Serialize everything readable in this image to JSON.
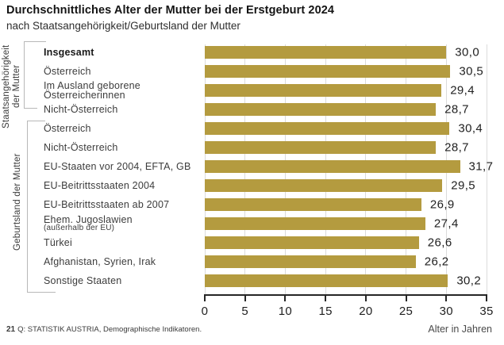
{
  "header": {
    "title": "Durchschnittliches Alter der Mutter bei der Erstgeburt 2024",
    "subtitle": "nach Staatsangehörigkeit/Geburtsland der Mutter"
  },
  "colors": {
    "bar": "#b49b3f",
    "grid": "#dbdbdb",
    "axis": "#262626",
    "bracket": "#b8b8b8",
    "title": "#141414",
    "text": "#3c3c3c",
    "value": "#1f1f1f"
  },
  "chart_data": {
    "type": "bar",
    "orientation": "horizontal",
    "title": "Durchschnittliches Alter der Mutter bei der Erstgeburt 2024",
    "subtitle": "nach Staatsangehörigkeit/Geburtsland der Mutter",
    "xlabel": "Alter in Jahren",
    "xlim": [
      0,
      35
    ],
    "xticks": [
      0,
      5,
      10,
      15,
      20,
      25,
      30,
      35
    ],
    "grid": true,
    "legend": false,
    "rows": [
      {
        "lines": [
          "Insgesamt"
        ],
        "bold": true,
        "value": 30.0,
        "value_label": "30,0"
      },
      {
        "lines": [
          "Österreich"
        ],
        "value": 30.5,
        "value_label": "30,5"
      },
      {
        "lines": [
          "Im Ausland geborene",
          "Österreicherinnen"
        ],
        "value": 29.4,
        "value_label": "29,4"
      },
      {
        "lines": [
          "Nicht-Österreich"
        ],
        "value": 28.7,
        "value_label": "28,7"
      },
      {
        "lines": [
          "Österreich"
        ],
        "value": 30.4,
        "value_label": "30,4"
      },
      {
        "lines": [
          "Nicht-Österreich"
        ],
        "value": 28.7,
        "value_label": "28,7"
      },
      {
        "lines": [
          "EU-Staaten vor 2004, EFTA, GB"
        ],
        "value": 31.7,
        "value_label": "31,7"
      },
      {
        "lines": [
          "EU-Beitrittsstaaten 2004"
        ],
        "value": 29.5,
        "value_label": "29,5"
      },
      {
        "lines": [
          "EU-Beitrittsstaaten ab 2007"
        ],
        "value": 26.9,
        "value_label": "26,9"
      },
      {
        "lines": [
          "Ehem. Jugoslawien",
          "(außerhalb der EU)"
        ],
        "small_second_line": true,
        "value": 27.4,
        "value_label": "27,4"
      },
      {
        "lines": [
          "Türkei"
        ],
        "value": 26.6,
        "value_label": "26,6"
      },
      {
        "lines": [
          "Afghanistan, Syrien, Irak"
        ],
        "value": 26.2,
        "value_label": "26,2"
      },
      {
        "lines": [
          "Sonstige Staaten"
        ],
        "value": 30.2,
        "value_label": "30,2"
      }
    ],
    "groups": [
      {
        "label": "Staatsangehörigkeit der Mutter",
        "label_lines": [
          "Staatsangehörigkeit",
          "der Mutter"
        ],
        "first_row": 0,
        "last_row": 3
      },
      {
        "label": "Geburtsland der Mutter",
        "label_lines": [
          "Geburtsland der Mutter"
        ],
        "first_row": 4,
        "last_row": 12
      }
    ]
  },
  "footer": {
    "number": "21",
    "source": "Q: STATISTIK AUSTRIA, Demographische Indikatoren."
  }
}
